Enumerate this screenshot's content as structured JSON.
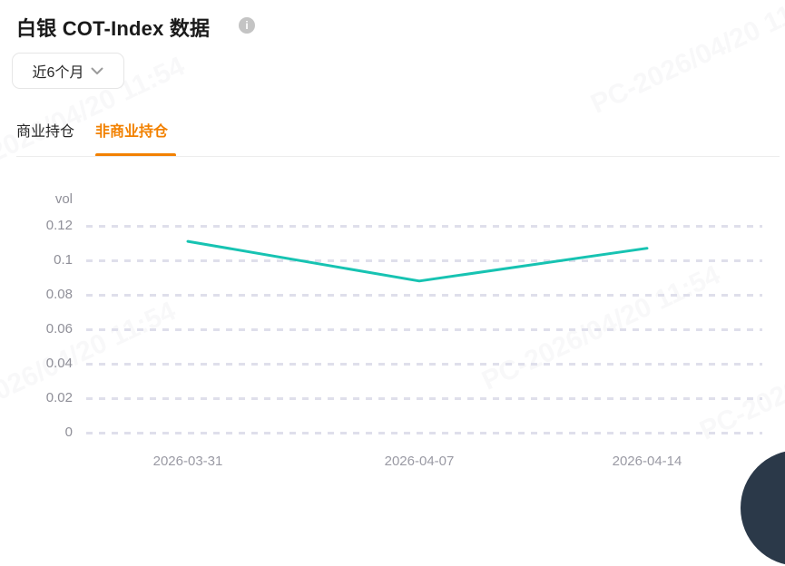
{
  "header": {
    "title": "白银 COT-Index 数据"
  },
  "icons": {
    "info": "i"
  },
  "filter": {
    "range_label": "近6个月"
  },
  "tabs": [
    {
      "label": "商业持仓",
      "active": false
    },
    {
      "label": "非商业持仓",
      "active": true
    }
  ],
  "watermark": {
    "text": "PC-2026/04/20 11:54"
  },
  "colors": {
    "accent_orange": "#f28100",
    "line_teal": "#17c3b2",
    "grid_dash": "#dfdfeb",
    "fab_dark": "#2b3949"
  },
  "chart_data": {
    "type": "line",
    "title": "",
    "xlabel": "",
    "ylabel": "vol",
    "x": [
      "2026-03-31",
      "2026-04-07",
      "2026-04-14"
    ],
    "series": [
      {
        "name": "非商业持仓",
        "values": [
          0.111,
          0.088,
          0.107
        ]
      }
    ],
    "ylim": [
      0,
      0.13
    ],
    "ytick_labels": [
      "0.12",
      "0.1",
      "0.08",
      "0.06",
      "0.04",
      "0.02",
      "0"
    ],
    "ytick_values": [
      0.12,
      0.1,
      0.08,
      0.06,
      0.04,
      0.02,
      0
    ],
    "grid": "dashed horizontal",
    "legend_position": "none",
    "line_color": "#17c3b2"
  }
}
